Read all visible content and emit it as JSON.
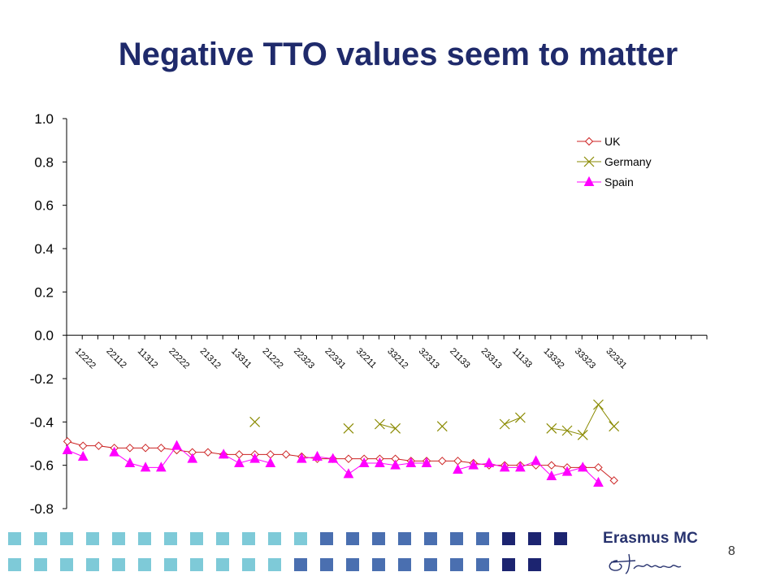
{
  "slide": {
    "title": "Negative TTO values seem to matter",
    "page_number": "8",
    "logo_text": "Erasmus MC"
  },
  "colors": {
    "title": "#1f2a6b",
    "uk": "#cc2222",
    "germany": "#8a8a00",
    "spain": "#ff00ff",
    "square_light": "#7ecad8",
    "square_mid": "#4a6fb0",
    "square_dark": "#1c2470"
  },
  "chart_data": {
    "type": "line",
    "title": "",
    "xlabel": "",
    "ylabel": "",
    "ylim": [
      -0.8,
      1.0
    ],
    "yticks": [
      "1.0",
      "0.8",
      "0.6",
      "0.4",
      "0.2",
      "0.0",
      "-0.2",
      "-0.4",
      "-0.6",
      "-0.8"
    ],
    "ytick_values": [
      1.0,
      0.8,
      0.6,
      0.4,
      0.2,
      0.0,
      -0.2,
      -0.4,
      -0.6,
      -0.8
    ],
    "tick_labels": [
      "12222",
      "22112",
      "11312",
      "22222",
      "21312",
      "13311",
      "21222",
      "22323",
      "22331",
      "32211",
      "33212",
      "32313",
      "21133",
      "23313",
      "11133",
      "13332",
      "33323",
      "32331"
    ],
    "n_points": 36,
    "grid": false,
    "legend_position": "top-right",
    "series": [
      {
        "name": "UK",
        "marker": "diamond",
        "values": [
          -0.49,
          -0.51,
          -0.51,
          -0.52,
          -0.52,
          -0.52,
          -0.52,
          -0.53,
          -0.54,
          -0.54,
          -0.55,
          -0.55,
          -0.55,
          -0.55,
          -0.55,
          -0.56,
          -0.57,
          -0.57,
          -0.57,
          -0.57,
          -0.57,
          -0.57,
          -0.58,
          -0.58,
          -0.58,
          -0.58,
          -0.59,
          -0.6,
          -0.6,
          -0.6,
          -0.6,
          -0.6,
          -0.61,
          -0.61,
          -0.61,
          -0.67
        ]
      },
      {
        "name": "Germany",
        "marker": "x",
        "values": [
          null,
          null,
          null,
          null,
          null,
          null,
          null,
          null,
          null,
          null,
          null,
          null,
          -0.4,
          null,
          null,
          null,
          null,
          null,
          -0.43,
          null,
          -0.41,
          -0.43,
          null,
          null,
          -0.42,
          null,
          null,
          null,
          -0.41,
          -0.38,
          null,
          -0.43,
          -0.44,
          -0.46,
          -0.32,
          -0.42
        ]
      },
      {
        "name": "Spain",
        "marker": "triangle",
        "values": [
          -0.53,
          -0.56,
          null,
          -0.54,
          -0.59,
          -0.61,
          -0.61,
          -0.51,
          -0.57,
          null,
          -0.55,
          -0.59,
          -0.57,
          -0.59,
          null,
          -0.57,
          -0.56,
          -0.57,
          -0.64,
          -0.59,
          -0.59,
          -0.6,
          -0.59,
          -0.59,
          null,
          -0.62,
          -0.6,
          -0.59,
          -0.61,
          -0.61,
          -0.58,
          -0.65,
          -0.63,
          -0.61,
          -0.68,
          null
        ]
      }
    ]
  }
}
